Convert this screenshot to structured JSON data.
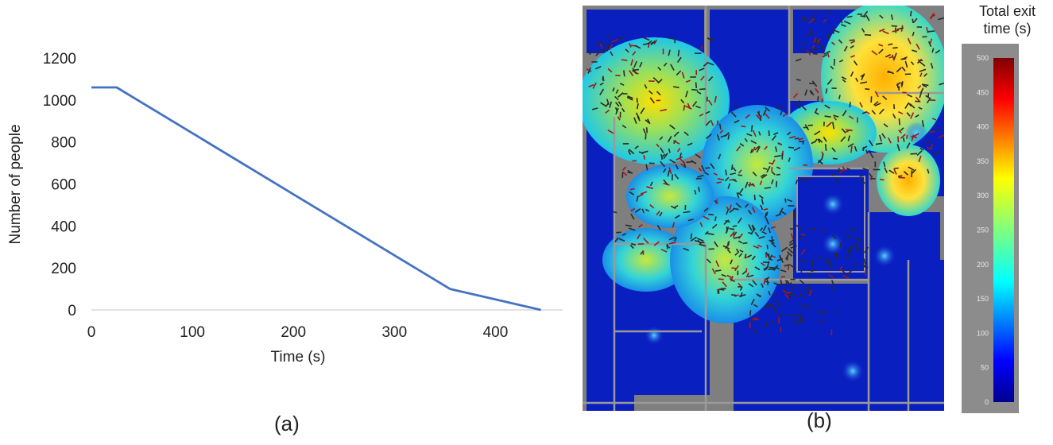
{
  "panels": {
    "a_label": "(a)",
    "b_label": "(b)"
  },
  "chart_data": [
    {
      "type": "line",
      "xlabel": "Time (s)",
      "ylabel": "Number of people",
      "xlim": [
        0,
        450
      ],
      "ylim": [
        0,
        1200
      ],
      "xticks": [
        0,
        100,
        200,
        300,
        400
      ],
      "yticks": [
        0,
        200,
        400,
        600,
        800,
        1000,
        1200
      ],
      "grid": false,
      "series": [
        {
          "color": "#4472c4",
          "x": [
            0,
            25,
            355,
            445
          ],
          "y": [
            1060,
            1060,
            100,
            0
          ]
        }
      ]
    },
    {
      "type": "heatmap",
      "colorbar": {
        "title_line1": "Total exit",
        "title_line2": "time (s)",
        "ticks": [
          0,
          50,
          100,
          150,
          200,
          250,
          300,
          350,
          400,
          450,
          500
        ],
        "range": [
          0,
          500
        ]
      }
    }
  ]
}
